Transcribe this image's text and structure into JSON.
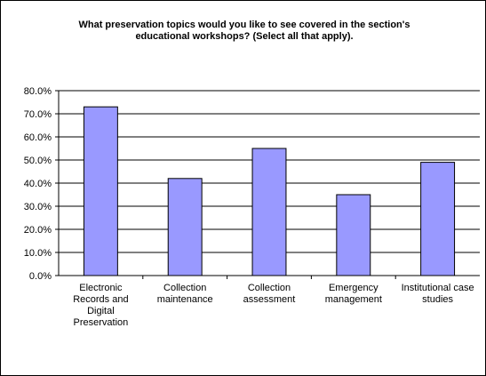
{
  "chart_data": {
    "type": "bar",
    "title_lines": [
      "What preservation topics would you like to see covered in the section's",
      "educational workshops? (Select all that apply)."
    ],
    "categories": [
      [
        "Electronic",
        "Records and",
        "Digital",
        "Preservation"
      ],
      [
        "Collection",
        "maintenance"
      ],
      [
        "Collection",
        "assessment"
      ],
      [
        "Emergency",
        "management"
      ],
      [
        "Institutional case",
        "studies"
      ]
    ],
    "values": [
      73.0,
      42.0,
      55.0,
      35.0,
      49.0
    ],
    "y_ticks": [
      "0.0%",
      "10.0%",
      "20.0%",
      "30.0%",
      "40.0%",
      "50.0%",
      "60.0%",
      "70.0%",
      "80.0%"
    ],
    "ylim": [
      0,
      80
    ],
    "bar_color": "#9999ff",
    "bar_border": "#000000",
    "legend": "none"
  }
}
